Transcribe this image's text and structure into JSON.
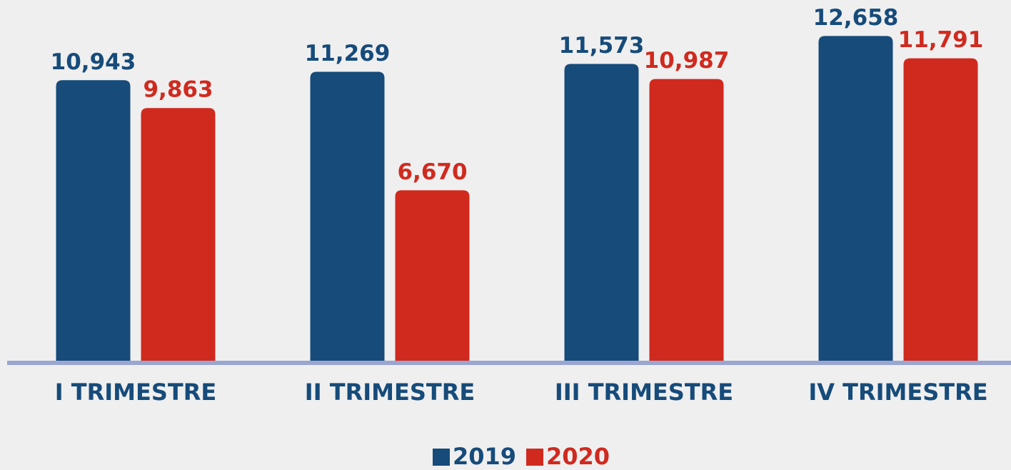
{
  "chart_data": {
    "type": "bar",
    "categories": [
      "I TRIMESTRE",
      "II TRIMESTRE",
      "III TRIMESTRE",
      "IV TRIMESTRE"
    ],
    "series": [
      {
        "name": "2019",
        "color": "#164b7a",
        "values": [
          10943,
          11269,
          11573,
          12658
        ],
        "value_labels": [
          "10,943",
          "11,269",
          "11,573",
          "12,658"
        ]
      },
      {
        "name": "2020",
        "color": "#d02a1f",
        "values": [
          9863,
          6670,
          10987,
          11791
        ],
        "value_labels": [
          "9,863",
          "6,670",
          "10,987",
          "11,791"
        ]
      }
    ],
    "ylim": [
      0,
      14000
    ]
  }
}
